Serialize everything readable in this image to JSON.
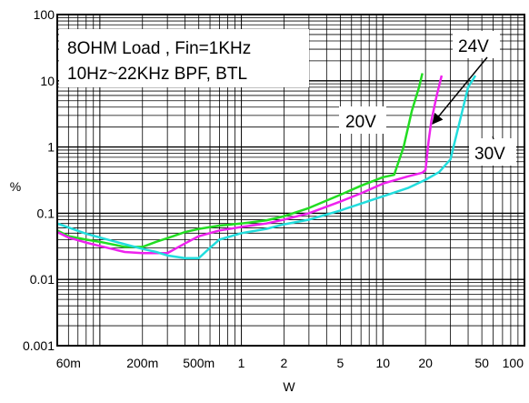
{
  "chart_data": {
    "type": "line",
    "title": "",
    "xlabel": "W",
    "ylabel": "%",
    "x_scale": "log",
    "y_scale": "log",
    "xlim": [
      0.05,
      100
    ],
    "ylim": [
      0.001,
      100
    ],
    "grid": true,
    "x_tick_labels": [
      {
        "value": 0.06,
        "label": "60m"
      },
      {
        "value": 0.2,
        "label": "200m"
      },
      {
        "value": 0.5,
        "label": "500m"
      },
      {
        "value": 1,
        "label": "1"
      },
      {
        "value": 2,
        "label": "2"
      },
      {
        "value": 5,
        "label": "5"
      },
      {
        "value": 10,
        "label": "10"
      },
      {
        "value": 20,
        "label": "20"
      },
      {
        "value": 50,
        "label": "50"
      },
      {
        "value": 100,
        "label": "100"
      }
    ],
    "y_tick_labels": [
      {
        "value": 100,
        "label": "100"
      },
      {
        "value": 10,
        "label": "10"
      },
      {
        "value": 1,
        "label": "1"
      },
      {
        "value": 0.1,
        "label": "0.1"
      },
      {
        "value": 0.01,
        "label": "0.01"
      },
      {
        "value": 0.001,
        "label": "0.001"
      }
    ],
    "annotation_lines": [
      "8OHM Load , Fin=1KHz",
      "10Hz~22KHz BPF, BTL"
    ],
    "series": [
      {
        "name": "20V",
        "color": "#22dd22",
        "points": [
          [
            0.05,
            0.055
          ],
          [
            0.06,
            0.045
          ],
          [
            0.08,
            0.04
          ],
          [
            0.1,
            0.037
          ],
          [
            0.15,
            0.031
          ],
          [
            0.2,
            0.031
          ],
          [
            0.25,
            0.037
          ],
          [
            0.3,
            0.042
          ],
          [
            0.4,
            0.052
          ],
          [
            0.5,
            0.058
          ],
          [
            0.7,
            0.065
          ],
          [
            1,
            0.07
          ],
          [
            1.5,
            0.078
          ],
          [
            2,
            0.09
          ],
          [
            3,
            0.12
          ],
          [
            5,
            0.19
          ],
          [
            7,
            0.26
          ],
          [
            10,
            0.35
          ],
          [
            12,
            0.38
          ],
          [
            14,
            1.0
          ],
          [
            16,
            3.5
          ],
          [
            18,
            8.0
          ],
          [
            19,
            13.0
          ]
        ]
      },
      {
        "name": "24V",
        "color": "#ee22ee",
        "points": [
          [
            0.05,
            0.052
          ],
          [
            0.06,
            0.043
          ],
          [
            0.08,
            0.036
          ],
          [
            0.1,
            0.032
          ],
          [
            0.15,
            0.026
          ],
          [
            0.2,
            0.025
          ],
          [
            0.25,
            0.025
          ],
          [
            0.3,
            0.025
          ],
          [
            0.4,
            0.035
          ],
          [
            0.5,
            0.045
          ],
          [
            0.7,
            0.055
          ],
          [
            1,
            0.062
          ],
          [
            1.5,
            0.07
          ],
          [
            2,
            0.08
          ],
          [
            3,
            0.1
          ],
          [
            5,
            0.15
          ],
          [
            7,
            0.2
          ],
          [
            10,
            0.28
          ],
          [
            15,
            0.36
          ],
          [
            19,
            0.41
          ],
          [
            20,
            0.45
          ],
          [
            21,
            1.2
          ],
          [
            22,
            2.5
          ],
          [
            24,
            6.0
          ],
          [
            26,
            12.0
          ]
        ]
      },
      {
        "name": "30V",
        "color": "#22dddd",
        "points": [
          [
            0.05,
            0.07
          ],
          [
            0.06,
            0.061
          ],
          [
            0.08,
            0.049
          ],
          [
            0.1,
            0.043
          ],
          [
            0.15,
            0.034
          ],
          [
            0.2,
            0.029
          ],
          [
            0.25,
            0.026
          ],
          [
            0.3,
            0.023
          ],
          [
            0.4,
            0.021
          ],
          [
            0.5,
            0.021
          ],
          [
            0.6,
            0.03
          ],
          [
            0.7,
            0.04
          ],
          [
            1,
            0.05
          ],
          [
            1.5,
            0.058
          ],
          [
            2,
            0.068
          ],
          [
            3,
            0.08
          ],
          [
            5,
            0.11
          ],
          [
            7,
            0.14
          ],
          [
            10,
            0.18
          ],
          [
            15,
            0.24
          ],
          [
            20,
            0.32
          ],
          [
            25,
            0.42
          ],
          [
            30,
            0.65
          ],
          [
            35,
            2.5
          ],
          [
            40,
            8.0
          ],
          [
            45,
            12.0
          ]
        ]
      }
    ],
    "series_label_callouts": [
      {
        "series": "20V",
        "label": "20V"
      },
      {
        "series": "24V",
        "label": "24V"
      },
      {
        "series": "30V",
        "label": "30V"
      }
    ]
  }
}
